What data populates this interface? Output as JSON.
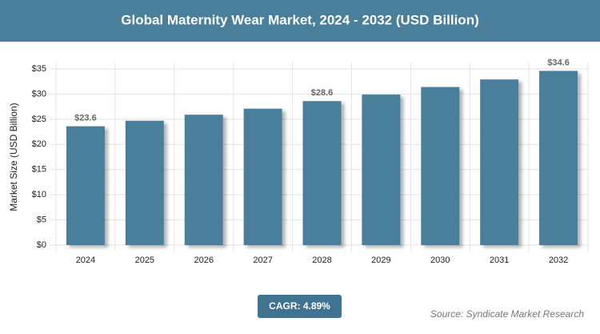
{
  "chart_data": {
    "type": "bar",
    "title": "Global Maternity Wear Market, 2024 - 2032 (USD Billion)",
    "y_label": "Market Size (USD Billion)",
    "categories": [
      "2024",
      "2025",
      "2026",
      "2027",
      "2028",
      "2029",
      "2030",
      "2031",
      "2032"
    ],
    "values": [
      23.6,
      24.7,
      25.9,
      27.1,
      28.6,
      29.9,
      31.4,
      32.9,
      34.6
    ],
    "value_labels": [
      "$23.6",
      null,
      null,
      null,
      "$28.6",
      null,
      null,
      null,
      "$34.6"
    ],
    "color": "#4a7f9b",
    "ylim": [
      0,
      35
    ],
    "yticks": [
      {
        "value": 0,
        "label": "$0"
      },
      {
        "value": 5,
        "label": "$5"
      },
      {
        "value": 10,
        "label": "$10"
      },
      {
        "value": 15,
        "label": "$15"
      },
      {
        "value": 20,
        "label": "$20"
      },
      {
        "value": 25,
        "label": "$25"
      },
      {
        "value": 30,
        "label": "$30"
      },
      {
        "value": 35,
        "label": "$35"
      }
    ],
    "grid": true,
    "cagr": "CAGR: 4.89%",
    "source": "Source: Syndicate Market Research"
  }
}
